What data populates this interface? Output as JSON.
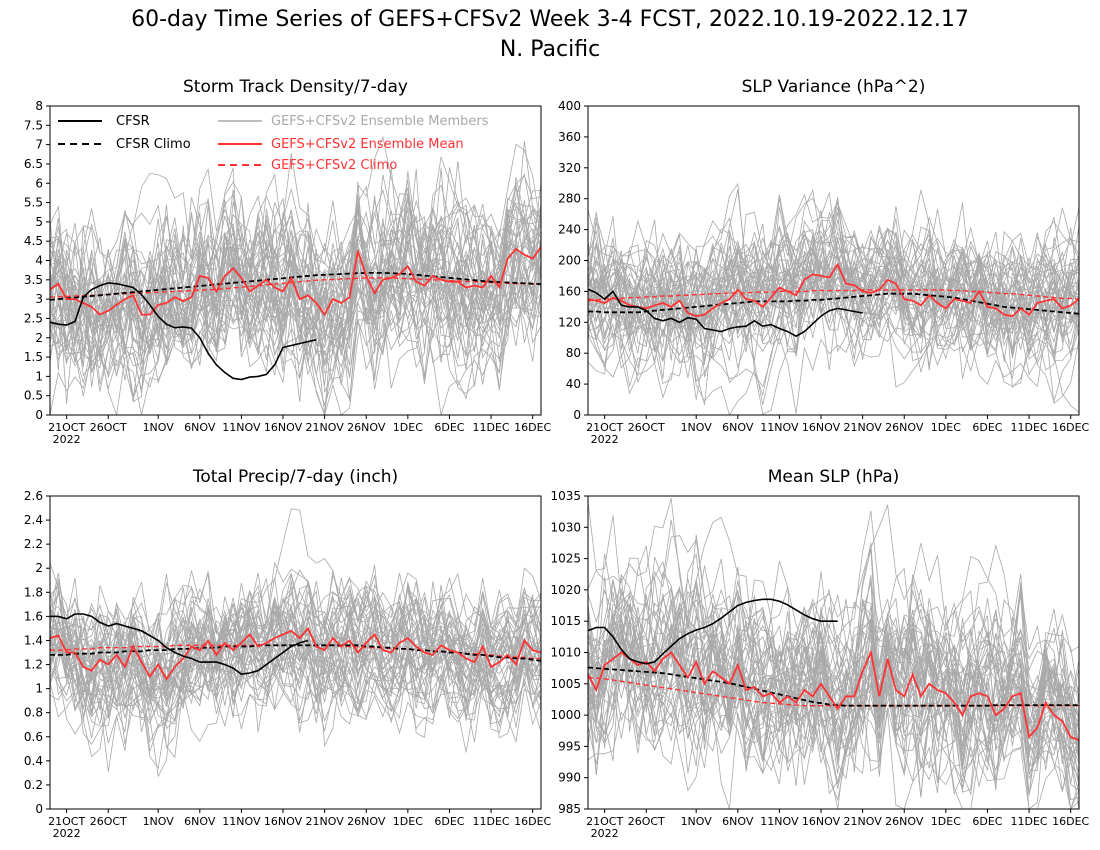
{
  "title_line1": "60-day Time Series of GEFS+CFSv2 Week 3-4 FCST, 2022.10.19-2022.12.17",
  "title_line2": "N. Pacific",
  "colors": {
    "cfsr": "#000000",
    "members": "#a9a9a9",
    "ens_mean": "#ff3333",
    "climo": "#ff3333"
  },
  "legend": {
    "cfsr": "CFSR",
    "cfsr_climo": "CFSR Climo",
    "members": "GEFS+CFSv2 Ensemble Members",
    "ens_mean": "GEFS+CFSv2 Ensemble Mean",
    "gefs_climo": "GEFS+CFSv2 Climo"
  },
  "x_tick_labels": [
    "21OCT",
    "26OCT",
    "1NOV",
    "6NOV",
    "11NOV",
    "16NOV",
    "21NOV",
    "26NOV",
    "1DEC",
    "6DEC",
    "11DEC",
    "16DEC"
  ],
  "x_year_label": "2022",
  "chart_data": [
    {
      "type": "line",
      "title": "Storm Track Density/7-day",
      "ylim": [
        0,
        8
      ],
      "yticks": [
        "0",
        "0.5",
        "1",
        "1.5",
        "2",
        "2.5",
        "3",
        "3.5",
        "4",
        "4.5",
        "5",
        "5.5",
        "6",
        "6.5",
        "7",
        "7.5",
        "8"
      ],
      "x_range_days": [
        0,
        59
      ],
      "cfsr": [
        2.4,
        2.35,
        2.33,
        2.42,
        3.05,
        3.25,
        3.35,
        3.42,
        3.4,
        3.35,
        3.3,
        3.12,
        2.85,
        2.55,
        2.35,
        2.26,
        2.28,
        2.25,
        2.0,
        1.6,
        1.3,
        1.1,
        0.95,
        0.92,
        0.98,
        1.0,
        1.05,
        1.3,
        1.75,
        1.8,
        1.85,
        1.9,
        1.95
      ],
      "cfsr_climo": [
        2.98,
        3.0,
        3.02,
        3.04,
        3.06,
        3.08,
        3.1,
        3.12,
        3.14,
        3.16,
        3.18,
        3.2,
        3.22,
        3.24,
        3.26,
        3.28,
        3.3,
        3.32,
        3.34,
        3.36,
        3.38,
        3.4,
        3.42,
        3.44,
        3.46,
        3.48,
        3.5,
        3.52,
        3.54,
        3.56,
        3.58,
        3.6,
        3.62,
        3.63,
        3.64,
        3.65,
        3.66,
        3.67,
        3.68,
        3.68,
        3.68,
        3.67,
        3.66,
        3.65,
        3.63,
        3.61,
        3.59,
        3.57,
        3.55,
        3.53,
        3.51,
        3.49,
        3.47,
        3.45,
        3.44,
        3.43,
        3.42,
        3.41,
        3.4,
        3.39
      ],
      "ens_mean": [
        3.25,
        3.4,
        3.0,
        3.0,
        2.9,
        2.8,
        2.6,
        2.7,
        2.85,
        3.0,
        3.1,
        2.6,
        2.6,
        2.85,
        2.9,
        3.05,
        2.95,
        3.05,
        3.6,
        3.55,
        3.2,
        3.6,
        3.8,
        3.55,
        3.2,
        3.35,
        3.5,
        3.3,
        3.2,
        3.55,
        3.0,
        3.1,
        2.9,
        2.6,
        3.0,
        2.9,
        3.05,
        4.25,
        3.6,
        3.15,
        3.5,
        3.55,
        3.65,
        3.85,
        3.45,
        3.35,
        3.6,
        3.5,
        3.45,
        3.45,
        3.3,
        3.35,
        3.3,
        3.6,
        3.3,
        4.05,
        4.3,
        4.15,
        4.05,
        4.35
      ],
      "gefs_climo": [
        3.05,
        3.06,
        3.07,
        3.08,
        3.09,
        3.1,
        3.11,
        3.12,
        3.13,
        3.14,
        3.15,
        3.16,
        3.17,
        3.18,
        3.19,
        3.2,
        3.21,
        3.22,
        3.23,
        3.24,
        3.25,
        3.27,
        3.29,
        3.31,
        3.33,
        3.35,
        3.37,
        3.39,
        3.41,
        3.43,
        3.45,
        3.47,
        3.49,
        3.5,
        3.51,
        3.52,
        3.53,
        3.54,
        3.55,
        3.55,
        3.55,
        3.55,
        3.54,
        3.53,
        3.52,
        3.51,
        3.5,
        3.49,
        3.48,
        3.47,
        3.46,
        3.45,
        3.44,
        3.43,
        3.42,
        3.41,
        3.4,
        3.4,
        3.39,
        3.39
      ],
      "members": {
        "count": 48,
        "spread": 1.15
      }
    },
    {
      "type": "line",
      "title": "SLP Variance (hPa^2)",
      "ylim": [
        0,
        400
      ],
      "yticks": [
        "0",
        "40",
        "80",
        "120",
        "160",
        "200",
        "240",
        "280",
        "320",
        "360",
        "400"
      ],
      "x_range_days": [
        0,
        59
      ],
      "cfsr": [
        163,
        158,
        150,
        160,
        142,
        140,
        140,
        135,
        125,
        122,
        125,
        120,
        126,
        124,
        112,
        110,
        108,
        112,
        114,
        115,
        122,
        115,
        117,
        112,
        108,
        102,
        108,
        118,
        128,
        135,
        138,
        136,
        134,
        132
      ],
      "cfsr_climo": [
        134,
        134,
        133,
        133,
        133,
        133,
        133,
        134,
        135,
        136,
        137,
        138,
        139,
        140,
        141,
        142,
        143,
        144,
        145,
        146,
        147,
        147,
        147,
        147,
        147,
        148,
        148,
        149,
        149,
        150,
        151,
        152,
        153,
        154,
        155,
        156,
        157,
        157,
        157,
        157,
        156,
        155,
        154,
        153,
        152,
        150,
        148,
        146,
        144,
        142,
        140,
        139,
        138,
        137,
        136,
        135,
        134,
        133,
        132,
        131
      ],
      "ens_mean": [
        150,
        148,
        145,
        152,
        148,
        142,
        140,
        138,
        142,
        145,
        140,
        148,
        132,
        128,
        130,
        138,
        145,
        150,
        162,
        150,
        148,
        140,
        152,
        165,
        160,
        155,
        175,
        182,
        180,
        178,
        195,
        170,
        168,
        160,
        158,
        162,
        175,
        170,
        150,
        148,
        142,
        155,
        145,
        138,
        150,
        148,
        145,
        160,
        140,
        138,
        130,
        128,
        138,
        130,
        145,
        148,
        150,
        138,
        142,
        150
      ],
      "gefs_climo": [
        148,
        149,
        150,
        151,
        151,
        152,
        152,
        153,
        153,
        154,
        154,
        155,
        155,
        156,
        156,
        157,
        157,
        158,
        158,
        158,
        159,
        159,
        159,
        160,
        160,
        160,
        160,
        161,
        161,
        161,
        161,
        161,
        161,
        162,
        162,
        162,
        162,
        162,
        162,
        162,
        162,
        162,
        162,
        162,
        161,
        161,
        160,
        160,
        159,
        158,
        157,
        157,
        156,
        155,
        154,
        153,
        152,
        151,
        151,
        150
      ],
      "members": {
        "count": 48,
        "spread": 45
      }
    },
    {
      "type": "line",
      "title": "Total Precip/7-day (inch)",
      "ylim": [
        0,
        2.6
      ],
      "yticks": [
        "0",
        "0.2",
        "0.4",
        "0.6",
        "0.8",
        "1",
        "1.2",
        "1.4",
        "1.6",
        "1.8",
        "2",
        "2.2",
        "2.4",
        "2.6"
      ],
      "x_range_days": [
        0,
        59
      ],
      "cfsr": [
        1.6,
        1.6,
        1.58,
        1.62,
        1.62,
        1.6,
        1.55,
        1.52,
        1.54,
        1.52,
        1.5,
        1.48,
        1.44,
        1.4,
        1.34,
        1.3,
        1.27,
        1.25,
        1.22,
        1.22,
        1.22,
        1.2,
        1.17,
        1.12,
        1.13,
        1.15,
        1.2,
        1.25,
        1.3,
        1.35,
        1.38,
        1.4
      ],
      "cfsr_climo": [
        1.28,
        1.28,
        1.28,
        1.29,
        1.29,
        1.29,
        1.3,
        1.3,
        1.3,
        1.31,
        1.31,
        1.31,
        1.32,
        1.32,
        1.32,
        1.33,
        1.33,
        1.33,
        1.34,
        1.34,
        1.34,
        1.35,
        1.35,
        1.35,
        1.35,
        1.36,
        1.36,
        1.36,
        1.36,
        1.36,
        1.36,
        1.36,
        1.36,
        1.36,
        1.36,
        1.36,
        1.36,
        1.36,
        1.35,
        1.35,
        1.34,
        1.34,
        1.33,
        1.33,
        1.32,
        1.32,
        1.31,
        1.31,
        1.3,
        1.3,
        1.29,
        1.28,
        1.28,
        1.27,
        1.26,
        1.26,
        1.25,
        1.25,
        1.24,
        1.23
      ],
      "ens_mean": [
        1.42,
        1.44,
        1.3,
        1.3,
        1.18,
        1.15,
        1.24,
        1.2,
        1.28,
        1.18,
        1.35,
        1.22,
        1.1,
        1.2,
        1.08,
        1.18,
        1.25,
        1.35,
        1.32,
        1.4,
        1.28,
        1.38,
        1.32,
        1.38,
        1.45,
        1.35,
        1.38,
        1.42,
        1.45,
        1.48,
        1.42,
        1.5,
        1.35,
        1.32,
        1.42,
        1.35,
        1.4,
        1.3,
        1.38,
        1.45,
        1.32,
        1.3,
        1.38,
        1.42,
        1.35,
        1.3,
        1.28,
        1.36,
        1.32,
        1.3,
        1.25,
        1.22,
        1.35,
        1.18,
        1.22,
        1.28,
        1.2,
        1.4,
        1.32,
        1.3
      ],
      "gefs_climo": [
        1.32,
        1.32,
        1.32,
        1.33,
        1.33,
        1.33,
        1.34,
        1.34,
        1.34,
        1.34,
        1.35,
        1.35,
        1.35,
        1.35,
        1.35,
        1.36,
        1.36,
        1.36,
        1.36,
        1.36,
        1.36,
        1.36,
        1.36,
        1.36,
        1.36,
        1.36,
        1.36,
        1.36,
        1.36,
        1.36,
        1.36,
        1.36,
        1.36,
        1.36,
        1.36,
        1.35,
        1.35,
        1.35,
        1.34,
        1.34,
        1.34,
        1.33,
        1.33,
        1.33,
        1.32,
        1.32,
        1.31,
        1.31,
        1.3,
        1.3,
        1.29,
        1.29,
        1.28,
        1.28,
        1.27,
        1.27,
        1.26,
        1.26,
        1.25,
        1.25
      ],
      "members": {
        "count": 48,
        "spread": 0.28
      }
    },
    {
      "type": "line",
      "title": "Mean SLP (hPa)",
      "ylim": [
        985,
        1035
      ],
      "yticks": [
        "985",
        "990",
        "995",
        "1000",
        "1005",
        "1010",
        "1015",
        "1020",
        "1025",
        "1030",
        "1035"
      ],
      "x_range_days": [
        0,
        59
      ],
      "cfsr": [
        1013.5,
        1014,
        1014,
        1012.5,
        1010.5,
        1009,
        1008.5,
        1008.2,
        1008.5,
        1009.8,
        1011,
        1012.2,
        1013,
        1013.6,
        1014,
        1014.6,
        1015.5,
        1016.5,
        1017.5,
        1018,
        1018.3,
        1018.5,
        1018.5,
        1018.2,
        1017.6,
        1016.8,
        1016,
        1015.4,
        1015,
        1015,
        1015
      ],
      "cfsr_climo": [
        1007.6,
        1007.5,
        1007.4,
        1007.3,
        1007.2,
        1007.1,
        1007,
        1006.9,
        1006.8,
        1006.7,
        1006.5,
        1006.3,
        1006.1,
        1005.9,
        1005.7,
        1005.5,
        1005.3,
        1005.1,
        1004.8,
        1004.5,
        1004.2,
        1003.9,
        1003.6,
        1003.3,
        1003,
        1002.7,
        1002.4,
        1002.1,
        1001.9,
        1001.7,
        1001.6,
        1001.5,
        1001.5,
        1001.5,
        1001.5,
        1001.5,
        1001.5,
        1001.5,
        1001.5,
        1001.5,
        1001.5,
        1001.5,
        1001.5,
        1001.5,
        1001.5,
        1001.5,
        1001.5,
        1001.5,
        1001.5,
        1001.6,
        1001.6,
        1001.6,
        1001.6,
        1001.6,
        1001.6,
        1001.6,
        1001.6,
        1001.6,
        1001.6,
        1001.6
      ],
      "ens_mean": [
        1006.5,
        1004,
        1008,
        1009,
        1010,
        1009,
        1008,
        1008.5,
        1007,
        1009,
        1010,
        1008,
        1006,
        1008.5,
        1005,
        1007,
        1006,
        1005,
        1008,
        1004,
        1004.5,
        1003,
        1003.5,
        1002,
        1003,
        1002,
        1004,
        1003,
        1005,
        1003,
        1001,
        1003,
        1003,
        1007,
        1010,
        1003,
        1009,
        1004,
        1003,
        1006.5,
        1003,
        1005,
        1004,
        1003.5,
        1002,
        1000,
        1003,
        1003.5,
        1003,
        1000,
        1001,
        1003,
        1003.5,
        996.5,
        998,
        1002,
        1000,
        999,
        996.5,
        996
      ],
      "gefs_climo": [
        1006,
        1005.9,
        1005.8,
        1005.6,
        1005.4,
        1005.2,
        1005,
        1004.8,
        1004.6,
        1004.4,
        1004.2,
        1004,
        1003.8,
        1003.6,
        1003.4,
        1003.2,
        1003,
        1002.8,
        1002.6,
        1002.4,
        1002.2,
        1002,
        1001.9,
        1001.8,
        1001.7,
        1001.6,
        1001.5,
        1001.5,
        1001.5,
        1001.5,
        1001.5,
        1001.5,
        1001.5,
        1001.5,
        1001.5,
        1001.5,
        1001.5,
        1001.5,
        1001.5,
        1001.5,
        1001.5,
        1001.5,
        1001.5,
        1001.5,
        1001.5,
        1001.5,
        1001.5,
        1001.5,
        1001.5,
        1001.5,
        1001.5,
        1001.5,
        1001.5,
        1001.5,
        1001.5,
        1001.5,
        1001.5,
        1001.5,
        1001.5,
        1001.5
      ],
      "members": {
        "count": 48,
        "spread": 7.5
      }
    }
  ]
}
